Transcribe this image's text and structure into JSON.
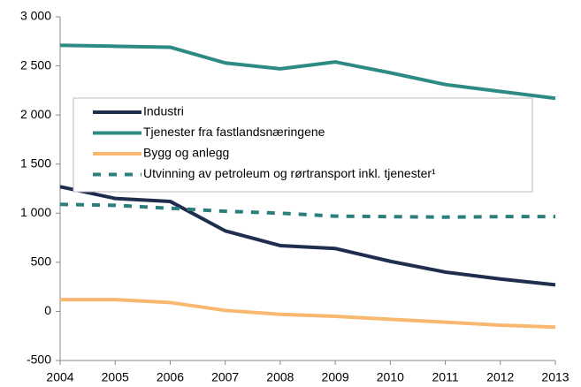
{
  "chart_data": {
    "type": "line",
    "x": [
      2004,
      2005,
      2006,
      2007,
      2008,
      2009,
      2010,
      2011,
      2012,
      2013
    ],
    "xlim": [
      2004,
      2013
    ],
    "xticks": [
      2004,
      2005,
      2006,
      2007,
      2008,
      2009,
      2010,
      2011,
      2012,
      2013
    ],
    "ylim": [
      -500,
      3000
    ],
    "yticks": [
      -500,
      0,
      500,
      {
        "value": 1000,
        "label": "1 000"
      },
      {
        "value": 1500,
        "label": "1 500"
      },
      {
        "value": 2000,
        "label": "2 000"
      },
      {
        "value": 2500,
        "label": "2 500"
      },
      {
        "value": 3000,
        "label": "3 000"
      }
    ],
    "grid": false,
    "legend": "center",
    "series": [
      {
        "name": "Industri",
        "color": "#1f2d4e",
        "dash": false,
        "values": [
          1270,
          1150,
          1120,
          820,
          670,
          640,
          510,
          400,
          330,
          270
        ]
      },
      {
        "name": "Tjenester fra fastlandsnæringene",
        "color": "#2e8b84",
        "dash": false,
        "values": [
          2710,
          2700,
          2690,
          2530,
          2470,
          2540,
          2430,
          2310,
          2240,
          2170
        ]
      },
      {
        "name": "Bygg og anlegg",
        "color": "#f9b870",
        "dash": false,
        "values": [
          120,
          120,
          90,
          10,
          -30,
          -50,
          -80,
          -110,
          -140,
          -160
        ]
      },
      {
        "name": "Utvinning av petroleum og rørtransport inkl. tjenester¹",
        "color": "#2a7f7a",
        "dash": true,
        "values": [
          1090,
          1080,
          1050,
          1020,
          1000,
          970,
          965,
          960,
          965,
          965
        ]
      }
    ]
  }
}
